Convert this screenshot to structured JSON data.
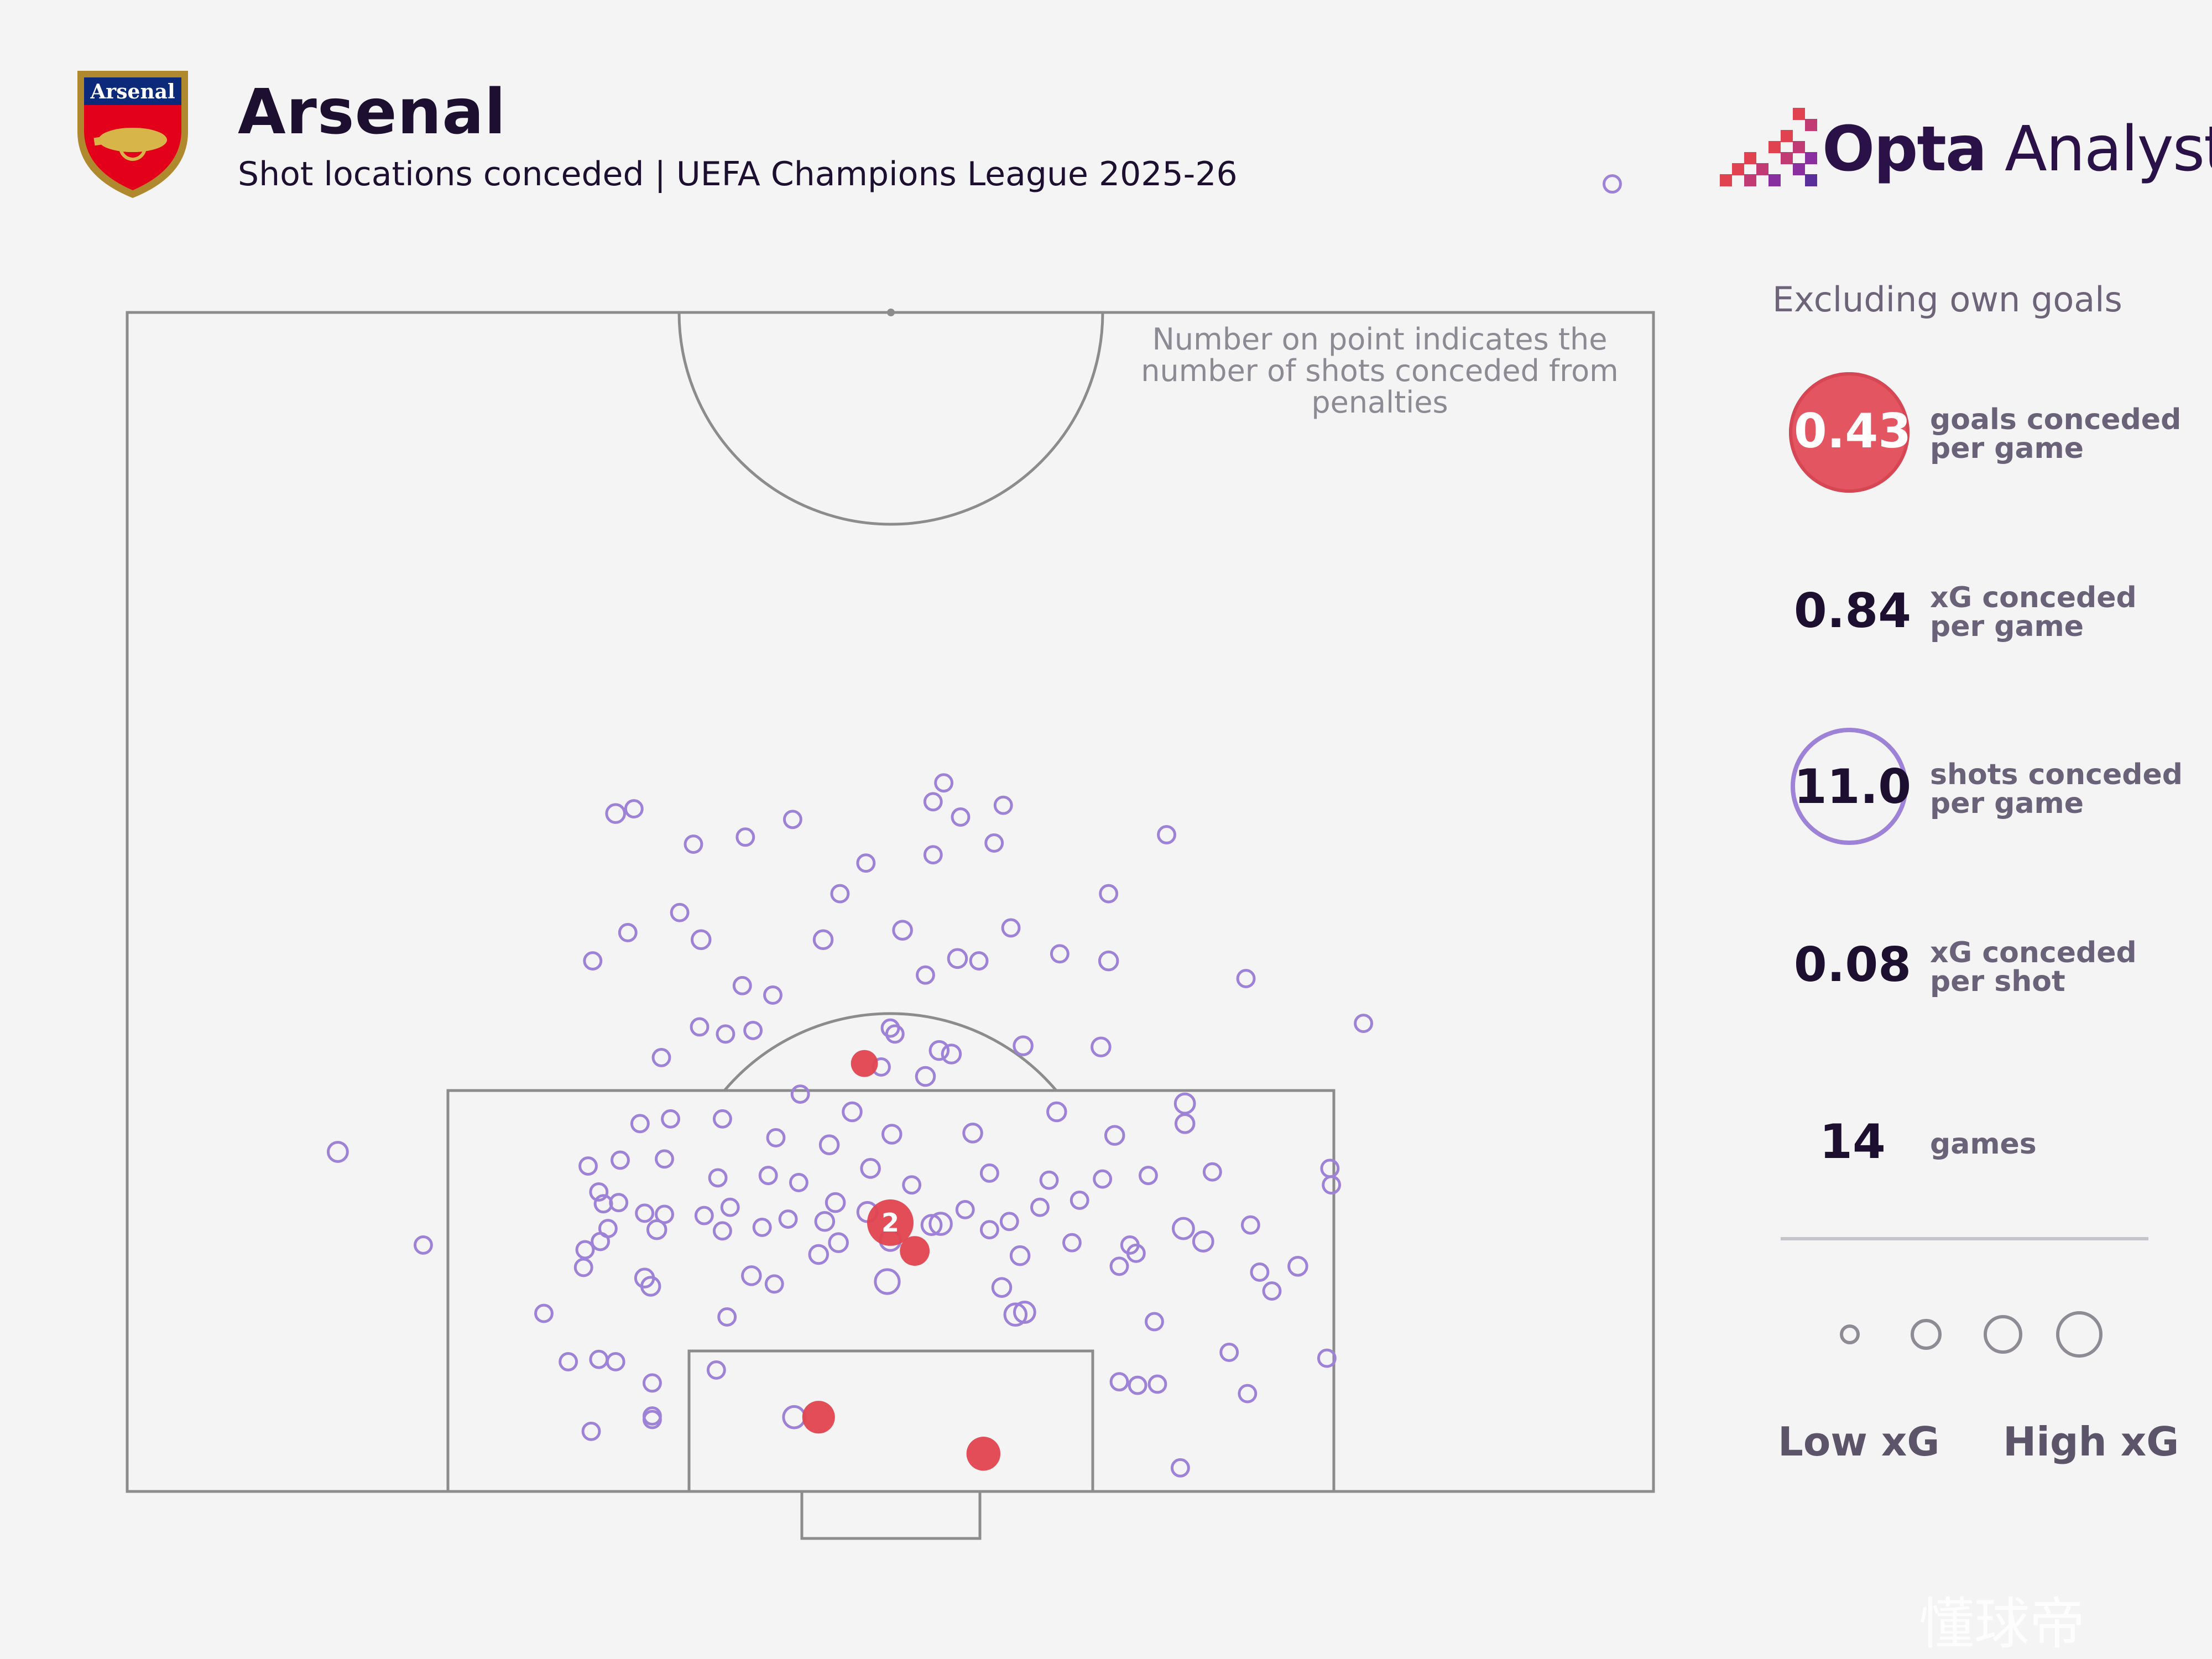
{
  "header": {
    "title": "Arsenal",
    "subtitle": "Shot locations conceded | UEFA Champions League 2025-26",
    "crest_text": "Arsenal",
    "brand_bold": "Opta",
    "brand_light": " Analyst"
  },
  "note": "Number on point indicates the number of shots conceded from penalties",
  "sidebar": {
    "exclusion_note": "Excluding own goals",
    "stats": [
      {
        "value": "0.43",
        "label_line1": "goals conceded",
        "label_line2": "per game"
      },
      {
        "value": "0.84",
        "label_line1": "xG conceded",
        "label_line2": "per game"
      },
      {
        "value": "11.0",
        "label_line1": "shots conceded",
        "label_line2": "per game"
      },
      {
        "value": "0.08",
        "label_line1": "xG conceded",
        "label_line2": "per shot"
      },
      {
        "value": "14",
        "label_line1": "games",
        "label_line2": ""
      }
    ],
    "legend_low": "Low xG",
    "legend_high": "High xG"
  },
  "colors": {
    "shot": "#9e82d8",
    "goal": "#e0434f",
    "pitch_line": "#8c8c8c",
    "text_dark": "#1c0f2f"
  },
  "watermark": "懂球帝",
  "chart_data": {
    "type": "scatter",
    "x_axis": "pitch width (0-100, left to right)",
    "y_axis": "distance from goal line (0 = goal line)",
    "xlim": [
      0,
      100
    ],
    "ylim": [
      0,
      100
    ],
    "shots": [
      {
        "x": 32.0,
        "y": 57.5,
        "xg": 0.03
      },
      {
        "x": 33.2,
        "y": 57.9,
        "xg": 0.02
      },
      {
        "x": 37.1,
        "y": 54.9,
        "xg": 0.02
      },
      {
        "x": 40.5,
        "y": 55.5,
        "xg": 0.02
      },
      {
        "x": 43.6,
        "y": 57.0,
        "xg": 0.02
      },
      {
        "x": 53.5,
        "y": 60.1,
        "xg": 0.02
      },
      {
        "x": 52.8,
        "y": 58.5,
        "xg": 0.02
      },
      {
        "x": 54.6,
        "y": 57.2,
        "xg": 0.02
      },
      {
        "x": 57.4,
        "y": 58.2,
        "xg": 0.02
      },
      {
        "x": 56.8,
        "y": 55.0,
        "xg": 0.02
      },
      {
        "x": 52.8,
        "y": 54.0,
        "xg": 0.02
      },
      {
        "x": 48.4,
        "y": 53.3,
        "xg": 0.02
      },
      {
        "x": 68.1,
        "y": 55.7,
        "xg": 0.02
      },
      {
        "x": 64.3,
        "y": 50.7,
        "xg": 0.02
      },
      {
        "x": 32.8,
        "y": 47.4,
        "xg": 0.02
      },
      {
        "x": 36.2,
        "y": 49.1,
        "xg": 0.02
      },
      {
        "x": 37.6,
        "y": 46.8,
        "xg": 0.03
      },
      {
        "x": 46.7,
        "y": 50.7,
        "xg": 0.02
      },
      {
        "x": 30.5,
        "y": 45.0,
        "xg": 0.02
      },
      {
        "x": 45.6,
        "y": 46.8,
        "xg": 0.03
      },
      {
        "x": 50.8,
        "y": 47.6,
        "xg": 0.03
      },
      {
        "x": 54.4,
        "y": 45.2,
        "xg": 0.03
      },
      {
        "x": 55.8,
        "y": 45.0,
        "xg": 0.02
      },
      {
        "x": 57.9,
        "y": 47.8,
        "xg": 0.02
      },
      {
        "x": 61.1,
        "y": 45.6,
        "xg": 0.02
      },
      {
        "x": 64.3,
        "y": 45.0,
        "xg": 0.03
      },
      {
        "x": 73.3,
        "y": 43.5,
        "xg": 0.02
      },
      {
        "x": 52.3,
        "y": 43.8,
        "xg": 0.02
      },
      {
        "x": 40.3,
        "y": 42.9,
        "xg": 0.02
      },
      {
        "x": 81.0,
        "y": 39.7,
        "xg": 0.02
      },
      {
        "x": 42.3,
        "y": 42.1,
        "xg": 0.02
      },
      {
        "x": 37.5,
        "y": 39.4,
        "xg": 0.02
      },
      {
        "x": 41.0,
        "y": 39.1,
        "xg": 0.02
      },
      {
        "x": 39.2,
        "y": 38.8,
        "xg": 0.02
      },
      {
        "x": 35.0,
        "y": 36.8,
        "xg": 0.02
      },
      {
        "x": 50.3,
        "y": 38.8,
        "xg": 0.02
      },
      {
        "x": 58.7,
        "y": 37.8,
        "xg": 0.03
      },
      {
        "x": 63.8,
        "y": 37.7,
        "xg": 0.03
      },
      {
        "x": 53.2,
        "y": 37.4,
        "xg": 0.03
      },
      {
        "x": 44.1,
        "y": 33.7,
        "xg": 0.02
      },
      {
        "x": 47.5,
        "y": 32.2,
        "xg": 0.03
      },
      {
        "x": 69.3,
        "y": 32.9,
        "xg": 0.04
      },
      {
        "x": 69.3,
        "y": 31.2,
        "xg": 0.03
      },
      {
        "x": 60.9,
        "y": 32.2,
        "xg": 0.03
      },
      {
        "x": 64.7,
        "y": 30.2,
        "xg": 0.03
      },
      {
        "x": 55.4,
        "y": 30.4,
        "xg": 0.03
      },
      {
        "x": 50.1,
        "y": 30.3,
        "xg": 0.03
      },
      {
        "x": 46.0,
        "y": 29.4,
        "xg": 0.03
      },
      {
        "x": 42.5,
        "y": 30.0,
        "xg": 0.02
      },
      {
        "x": 39.0,
        "y": 31.6,
        "xg": 0.02
      },
      {
        "x": 35.6,
        "y": 31.6,
        "xg": 0.02
      },
      {
        "x": 33.6,
        "y": 31.2,
        "xg": 0.02
      },
      {
        "x": 30.2,
        "y": 27.6,
        "xg": 0.02
      },
      {
        "x": 32.3,
        "y": 28.1,
        "xg": 0.02
      },
      {
        "x": 35.2,
        "y": 28.2,
        "xg": 0.02
      },
      {
        "x": 38.7,
        "y": 26.6,
        "xg": 0.02
      },
      {
        "x": 42.0,
        "y": 26.8,
        "xg": 0.02
      },
      {
        "x": 44.0,
        "y": 26.2,
        "xg": 0.02
      },
      {
        "x": 48.7,
        "y": 27.4,
        "xg": 0.03
      },
      {
        "x": 51.4,
        "y": 26.0,
        "xg": 0.02
      },
      {
        "x": 56.5,
        "y": 27.0,
        "xg": 0.02
      },
      {
        "x": 60.4,
        "y": 26.4,
        "xg": 0.02
      },
      {
        "x": 63.9,
        "y": 26.5,
        "xg": 0.02
      },
      {
        "x": 66.9,
        "y": 26.8,
        "xg": 0.02
      },
      {
        "x": 71.1,
        "y": 27.1,
        "xg": 0.02
      },
      {
        "x": 78.8,
        "y": 27.4,
        "xg": 0.02
      },
      {
        "x": 30.9,
        "y": 25.4,
        "xg": 0.02
      },
      {
        "x": 31.2,
        "y": 24.4,
        "xg": 0.02
      },
      {
        "x": 31.5,
        "y": 22.3,
        "xg": 0.02
      },
      {
        "x": 32.2,
        "y": 24.5,
        "xg": 0.02
      },
      {
        "x": 33.9,
        "y": 23.6,
        "xg": 0.02
      },
      {
        "x": 35.2,
        "y": 23.5,
        "xg": 0.02
      },
      {
        "x": 34.7,
        "y": 22.2,
        "xg": 0.03
      },
      {
        "x": 37.8,
        "y": 23.4,
        "xg": 0.02
      },
      {
        "x": 39.5,
        "y": 24.1,
        "xg": 0.02
      },
      {
        "x": 41.6,
        "y": 22.4,
        "xg": 0.02
      },
      {
        "x": 43.3,
        "y": 23.1,
        "xg": 0.02
      },
      {
        "x": 45.7,
        "y": 22.9,
        "xg": 0.03
      },
      {
        "x": 46.4,
        "y": 24.5,
        "xg": 0.03
      },
      {
        "x": 48.5,
        "y": 23.7,
        "xg": 0.04
      },
      {
        "x": 52.7,
        "y": 22.6,
        "xg": 0.04
      },
      {
        "x": 54.9,
        "y": 23.9,
        "xg": 0.02
      },
      {
        "x": 56.5,
        "y": 22.2,
        "xg": 0.02
      },
      {
        "x": 57.8,
        "y": 22.9,
        "xg": 0.02
      },
      {
        "x": 59.8,
        "y": 24.1,
        "xg": 0.02
      },
      {
        "x": 62.4,
        "y": 24.7,
        "xg": 0.02
      },
      {
        "x": 69.2,
        "y": 22.3,
        "xg": 0.05
      },
      {
        "x": 73.6,
        "y": 22.6,
        "xg": 0.02
      },
      {
        "x": 78.9,
        "y": 26.0,
        "xg": 0.02
      },
      {
        "x": 30.0,
        "y": 20.5,
        "xg": 0.02
      },
      {
        "x": 31.0,
        "y": 21.2,
        "xg": 0.02
      },
      {
        "x": 39.0,
        "y": 22.1,
        "xg": 0.02
      },
      {
        "x": 45.3,
        "y": 20.1,
        "xg": 0.03
      },
      {
        "x": 46.6,
        "y": 21.1,
        "xg": 0.03
      },
      {
        "x": 50.0,
        "y": 21.3,
        "xg": 0.05
      },
      {
        "x": 53.3,
        "y": 22.7,
        "xg": 0.06
      },
      {
        "x": 58.5,
        "y": 20.0,
        "xg": 0.03
      },
      {
        "x": 61.9,
        "y": 21.1,
        "xg": 0.02
      },
      {
        "x": 65.0,
        "y": 19.1,
        "xg": 0.02
      },
      {
        "x": 66.1,
        "y": 20.2,
        "xg": 0.02
      },
      {
        "x": 65.7,
        "y": 20.9,
        "xg": 0.02
      },
      {
        "x": 70.5,
        "y": 21.2,
        "xg": 0.04
      },
      {
        "x": 74.2,
        "y": 18.6,
        "xg": 0.02
      },
      {
        "x": 76.7,
        "y": 19.1,
        "xg": 0.03
      },
      {
        "x": 29.9,
        "y": 19.0,
        "xg": 0.02
      },
      {
        "x": 33.9,
        "y": 18.1,
        "xg": 0.03
      },
      {
        "x": 34.3,
        "y": 17.4,
        "xg": 0.03
      },
      {
        "x": 40.9,
        "y": 18.3,
        "xg": 0.03
      },
      {
        "x": 42.4,
        "y": 17.6,
        "xg": 0.02
      },
      {
        "x": 49.8,
        "y": 17.8,
        "xg": 0.09
      },
      {
        "x": 58.2,
        "y": 15.0,
        "xg": 0.06
      },
      {
        "x": 58.8,
        "y": 15.2,
        "xg": 0.05
      },
      {
        "x": 57.3,
        "y": 17.3,
        "xg": 0.03
      },
      {
        "x": 75.0,
        "y": 17.0,
        "xg": 0.02
      },
      {
        "x": 27.3,
        "y": 15.1,
        "xg": 0.02
      },
      {
        "x": 39.3,
        "y": 14.8,
        "xg": 0.02
      },
      {
        "x": 67.3,
        "y": 14.4,
        "xg": 0.02
      },
      {
        "x": 28.9,
        "y": 11.0,
        "xg": 0.02
      },
      {
        "x": 30.9,
        "y": 11.2,
        "xg": 0.02
      },
      {
        "x": 32.0,
        "y": 11.0,
        "xg": 0.02
      },
      {
        "x": 34.4,
        "y": 9.2,
        "xg": 0.02
      },
      {
        "x": 38.6,
        "y": 10.3,
        "xg": 0.02
      },
      {
        "x": 65.0,
        "y": 9.3,
        "xg": 0.02
      },
      {
        "x": 72.2,
        "y": 11.8,
        "xg": 0.02
      },
      {
        "x": 78.6,
        "y": 11.3,
        "xg": 0.02
      },
      {
        "x": 66.2,
        "y": 9.0,
        "xg": 0.02
      },
      {
        "x": 67.5,
        "y": 9.1,
        "xg": 0.02
      },
      {
        "x": 73.4,
        "y": 8.3,
        "xg": 0.02
      },
      {
        "x": 34.4,
        "y": 6.4,
        "xg": 0.02
      },
      {
        "x": 34.4,
        "y": 6.1,
        "xg": 0.02
      },
      {
        "x": 30.4,
        "y": 5.1,
        "xg": 0.02
      },
      {
        "x": 43.7,
        "y": 6.3,
        "xg": 0.06
      },
      {
        "x": 69.0,
        "y": 2.0,
        "xg": 0.02
      },
      {
        "x": 13.8,
        "y": 28.8,
        "xg": 0.04
      },
      {
        "x": 19.4,
        "y": 20.9,
        "xg": 0.02
      },
      {
        "x": 97.3,
        "y": 110.9,
        "xg": 0.02
      },
      {
        "x": 52.3,
        "y": 35.2,
        "xg": 0.03
      },
      {
        "x": 54.0,
        "y": 37.1,
        "xg": 0.03
      },
      {
        "x": 49.4,
        "y": 36.0,
        "xg": 0.02
      },
      {
        "x": 50.0,
        "y": 39.3,
        "xg": 0.02
      }
    ],
    "goals": [
      {
        "x": 48.3,
        "y": 36.3,
        "xg": 0.05
      },
      {
        "x": 50.0,
        "y": 22.8,
        "xg": 0.79,
        "label": "2"
      },
      {
        "x": 51.6,
        "y": 20.4,
        "xg": 0.08
      },
      {
        "x": 45.3,
        "y": 6.3,
        "xg": 0.12
      },
      {
        "x": 56.1,
        "y": 3.2,
        "xg": 0.14
      }
    ],
    "legend": {
      "sizes": [
        "low",
        "medium-low",
        "medium-high",
        "high"
      ],
      "label_low": "Low xG",
      "label_high": "High xG"
    }
  }
}
